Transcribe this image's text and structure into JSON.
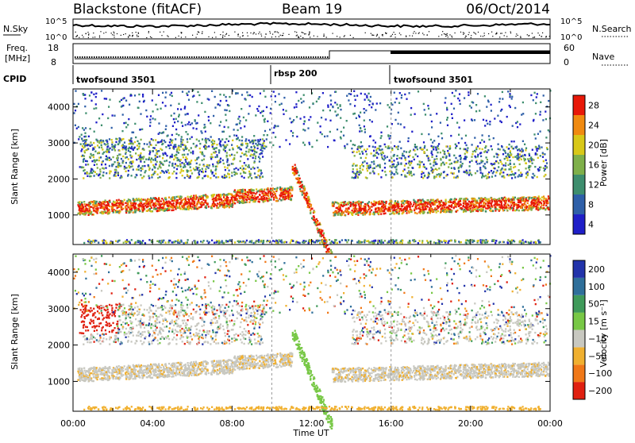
{
  "header": {
    "station": "Blackstone (fitACF)",
    "beam": "Beam 19",
    "date": "06/Oct/2014"
  },
  "info_panels": {
    "nsky_label": "N.Sky",
    "nsky_ticks": [
      "10^5",
      "10^0"
    ],
    "nsearch_label": "N.Search",
    "freq_label_line1": "Freq.",
    "freq_label_line2": "[MHz]",
    "freq_ticks": [
      "18",
      "8"
    ],
    "nave_ticks": [
      "60",
      "0"
    ],
    "nave_label": "Nave",
    "cpid_label": "CPID",
    "cpid_segments": [
      {
        "name": "twofsound 3501",
        "start_hour": 0,
        "end_hour": 10
      },
      {
        "name": "rbsp 200",
        "start_hour": 10,
        "end_hour": 16
      },
      {
        "name": "twofsound 3501",
        "start_hour": 16,
        "end_hour": 24
      }
    ]
  },
  "chart_data": [
    {
      "type": "heatmap",
      "title": "",
      "xlabel": "Time UT",
      "ylabel": "Slant Range [km]",
      "x_ticks": [
        "00:00",
        "04:00",
        "08:00",
        "12:00",
        "16:00",
        "20:00",
        "00:00"
      ],
      "y_ticks": [
        1000,
        2000,
        3000,
        4000
      ],
      "xlim_hours": [
        0,
        24
      ],
      "ylim_km": [
        180,
        4500
      ],
      "colorbar": {
        "label": "Power [dB]",
        "ticks": [
          4,
          8,
          12,
          16,
          20,
          24,
          28
        ],
        "colors": [
          "#1f1fc8",
          "#2e5fa8",
          "#3e8e6e",
          "#7fb04a",
          "#d8c818",
          "#f08a10",
          "#e81808"
        ]
      },
      "features": [
        {
          "desc": "high-power band",
          "start_hour": 0.2,
          "end_hour": 23.9,
          "range_km": [
            1000,
            1500
          ]
        },
        {
          "desc": "far echoes",
          "start_hour": 0.3,
          "end_hour": 9.5,
          "range_km": [
            2000,
            3000
          ]
        }
      ]
    },
    {
      "type": "heatmap",
      "title": "",
      "xlabel": "Time UT",
      "ylabel": "Slant Range [km]",
      "x_ticks": [
        "00:00",
        "04:00",
        "08:00",
        "12:00",
        "16:00",
        "20:00",
        "00:00"
      ],
      "y_ticks": [
        1000,
        2000,
        3000,
        4000
      ],
      "xlim_hours": [
        0,
        24
      ],
      "ylim_km": [
        180,
        4500
      ],
      "colorbar": {
        "label": "Velocity [m s⁻¹]",
        "ticks": [
          "200",
          "100",
          "50",
          "15",
          "−15",
          "−50",
          "−100",
          "−200"
        ],
        "colors": [
          "#2233aa",
          "#2f6f9a",
          "#3f9a5a",
          "#78c846",
          "#c8c8c0",
          "#f0b030",
          "#f07818",
          "#e02010"
        ]
      }
    }
  ]
}
